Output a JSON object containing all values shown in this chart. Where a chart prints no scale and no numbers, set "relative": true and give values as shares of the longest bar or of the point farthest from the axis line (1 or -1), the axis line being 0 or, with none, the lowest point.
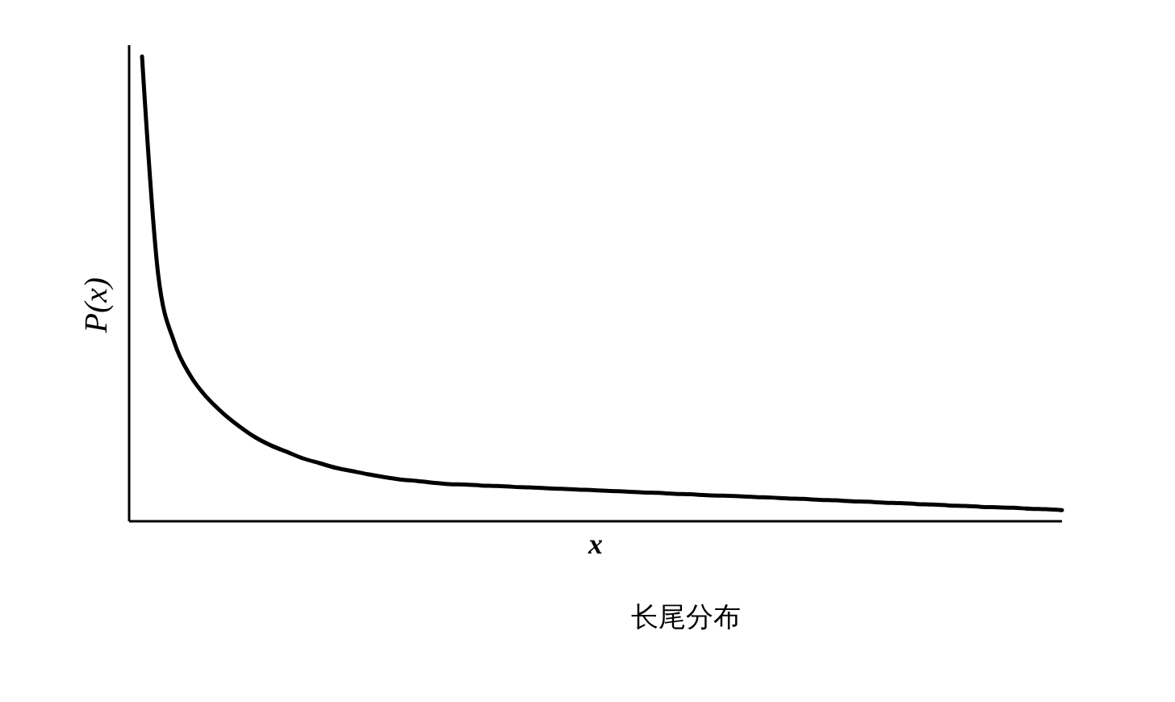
{
  "chart_data": {
    "type": "line",
    "relative": true,
    "title": "长尾分布",
    "xlabel": "x",
    "ylabel": "P(x)",
    "color": "#000000",
    "categories": [
      null,
      null,
      null,
      null,
      null,
      null,
      null,
      null,
      null,
      null,
      null,
      null,
      null,
      null,
      null,
      null,
      null,
      null,
      null,
      null,
      null,
      null,
      null,
      null,
      null,
      null,
      null,
      null,
      null,
      null,
      null,
      null,
      null,
      null,
      null,
      null,
      null,
      null,
      null,
      null,
      null,
      null,
      null,
      null,
      null,
      null,
      null,
      null,
      null,
      null,
      null,
      null,
      null,
      null,
      null,
      null,
      null,
      null
    ],
    "values": [
      1.0,
      0.531,
      0.385,
      0.313,
      0.267,
      0.233,
      0.205,
      0.181,
      0.163,
      0.149,
      0.135,
      0.125,
      0.115,
      0.108,
      0.101,
      0.095,
      0.09,
      0.087,
      0.083,
      0.08,
      0.079,
      0.077,
      0.076,
      0.074,
      0.073,
      0.071,
      0.07,
      0.068,
      0.067,
      0.065,
      0.064,
      0.062,
      0.061,
      0.059,
      0.058,
      0.056,
      0.055,
      0.054,
      0.052,
      0.051,
      0.049,
      0.048,
      0.046,
      0.045,
      0.043,
      0.042,
      0.04,
      0.039,
      0.037,
      0.036,
      0.034,
      0.033,
      0.031,
      0.03,
      0.029,
      0.027,
      0.026,
      0.024
    ],
    "marker": "none",
    "line_style": "solid"
  }
}
